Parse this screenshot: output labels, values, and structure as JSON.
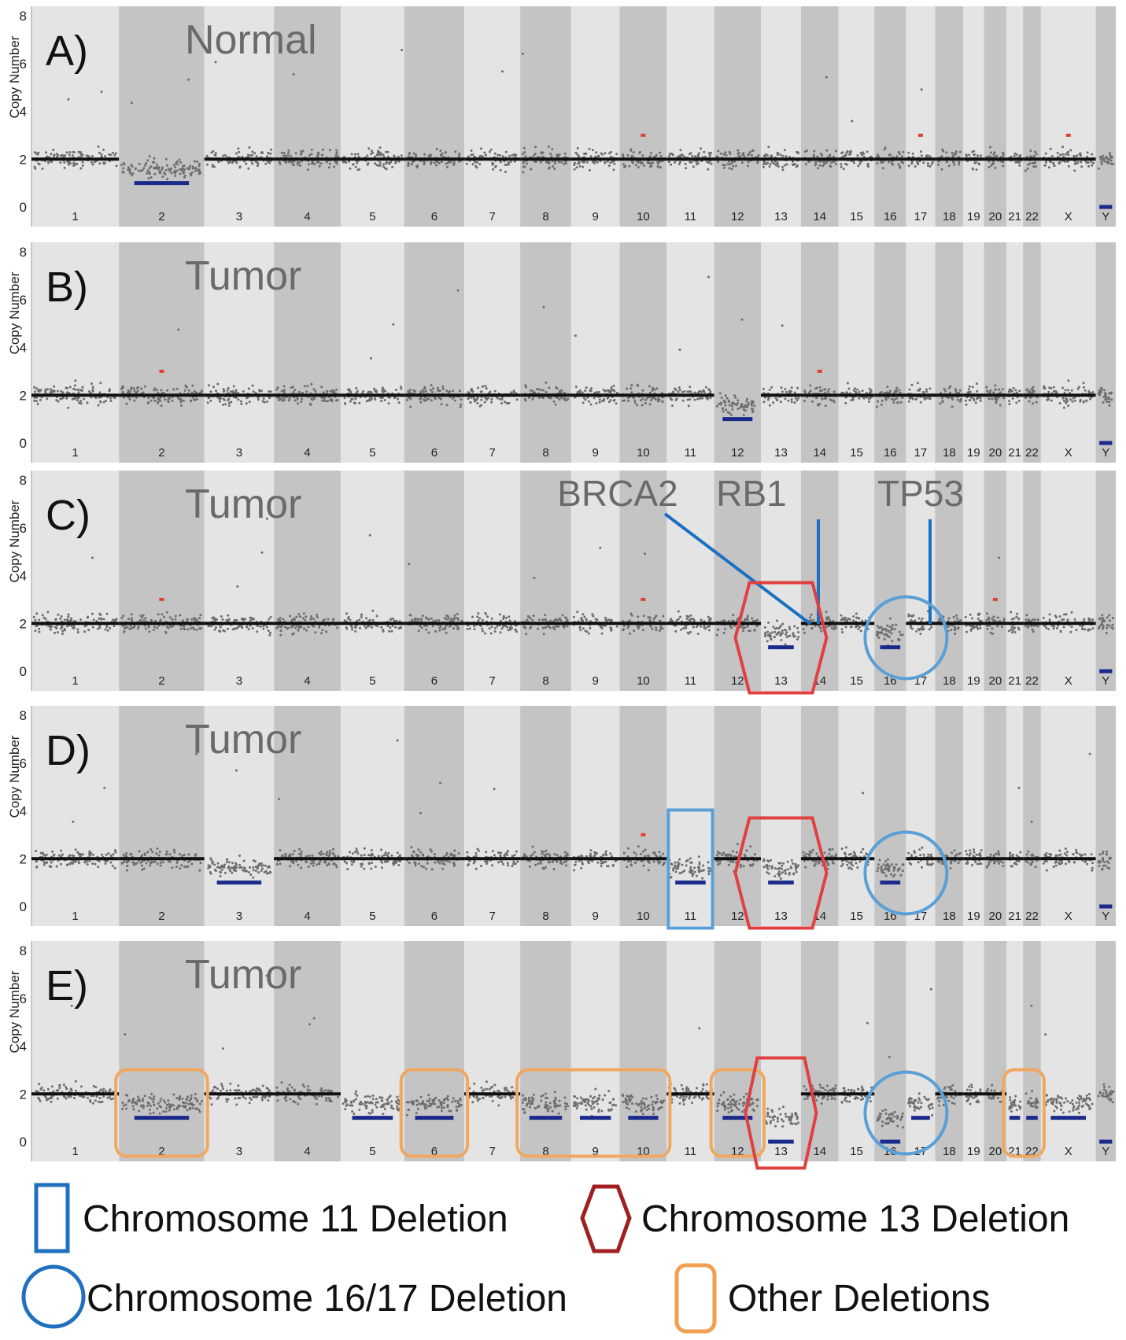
{
  "chart_data": {
    "type": "scatter",
    "ylabel": "Copy Number",
    "ylim": [
      0,
      8
    ],
    "yticks": [
      0,
      2,
      4,
      6,
      8
    ],
    "chromosomes": [
      "1",
      "2",
      "3",
      "4",
      "5",
      "6",
      "7",
      "8",
      "9",
      "10",
      "11",
      "12",
      "13",
      "14",
      "15",
      "16",
      "17",
      "18",
      "19",
      "20",
      "21",
      "22",
      "X",
      "Y"
    ],
    "chromosome_sizes_mb": [
      249,
      243,
      198,
      190,
      181,
      171,
      159,
      145,
      138,
      134,
      135,
      133,
      114,
      107,
      102,
      90,
      83,
      80,
      59,
      64,
      47,
      51,
      156,
      57
    ],
    "colors": {
      "band_light": "#e4e4e4",
      "band_dark": "#c4c4c4",
      "baseline": "#111111",
      "points": "#6e6e6e",
      "loss": "#1a2a8a",
      "gain": "#e04030"
    },
    "panels": [
      {
        "id": "A",
        "letter": "A)",
        "condition": "Normal",
        "segments": [
          {
            "chr": "2",
            "copy": 1
          },
          {
            "chr": "Y",
            "copy": 0
          }
        ],
        "gains": [
          {
            "chr": "10",
            "copy": 3
          },
          {
            "chr": "17",
            "copy": 3
          },
          {
            "chr": "X",
            "copy": 3
          }
        ]
      },
      {
        "id": "B",
        "letter": "B)",
        "condition": "Tumor",
        "segments": [
          {
            "chr": "12",
            "copy": 1
          },
          {
            "chr": "Y",
            "copy": 0
          }
        ],
        "gains": [
          {
            "chr": "2",
            "copy": 3
          },
          {
            "chr": "14",
            "copy": 3
          }
        ]
      },
      {
        "id": "C",
        "letter": "C)",
        "condition": "Tumor",
        "segments": [
          {
            "chr": "13",
            "copy": 1
          },
          {
            "chr": "16",
            "copy": 1
          },
          {
            "chr": "Y",
            "copy": 0
          }
        ],
        "gains": [
          {
            "chr": "2",
            "copy": 3
          },
          {
            "chr": "10",
            "copy": 3
          },
          {
            "chr": "20",
            "copy": 3
          }
        ],
        "genes": [
          "BRCA2",
          "RB1",
          "TP53"
        ]
      },
      {
        "id": "D",
        "letter": "D)",
        "condition": "Tumor",
        "segments": [
          {
            "chr": "3",
            "copy": 1
          },
          {
            "chr": "11",
            "copy": 1
          },
          {
            "chr": "13",
            "copy": 1
          },
          {
            "chr": "16",
            "copy": 1
          },
          {
            "chr": "Y",
            "copy": 0
          }
        ],
        "gains": [
          {
            "chr": "10",
            "copy": 3
          }
        ]
      },
      {
        "id": "E",
        "letter": "E)",
        "condition": "Tumor",
        "segments": [
          {
            "chr": "2",
            "copy": 1
          },
          {
            "chr": "5",
            "copy": 1
          },
          {
            "chr": "6",
            "copy": 1
          },
          {
            "chr": "8",
            "copy": 1
          },
          {
            "chr": "9",
            "copy": 1
          },
          {
            "chr": "10",
            "copy": 1
          },
          {
            "chr": "12",
            "copy": 1
          },
          {
            "chr": "13",
            "copy": 0
          },
          {
            "chr": "16",
            "copy": 0
          },
          {
            "chr": "17",
            "copy": 1
          },
          {
            "chr": "21",
            "copy": 1
          },
          {
            "chr": "22",
            "copy": 1
          },
          {
            "chr": "X",
            "copy": 1
          },
          {
            "chr": "Y",
            "copy": 0
          }
        ],
        "gains": []
      }
    ]
  },
  "legend": [
    {
      "shape": "rect",
      "color": "#2070c0",
      "text": "Chromosome 11 Deletion"
    },
    {
      "shape": "hexagon",
      "color": "#a02020",
      "text": "Chromosome 13 Deletion"
    },
    {
      "shape": "circle",
      "color": "#2070c0",
      "text": "Chromosome 16/17 Deletion"
    },
    {
      "shape": "rounded-rect",
      "color": "#f0a050",
      "text": "Other Deletions"
    }
  ]
}
